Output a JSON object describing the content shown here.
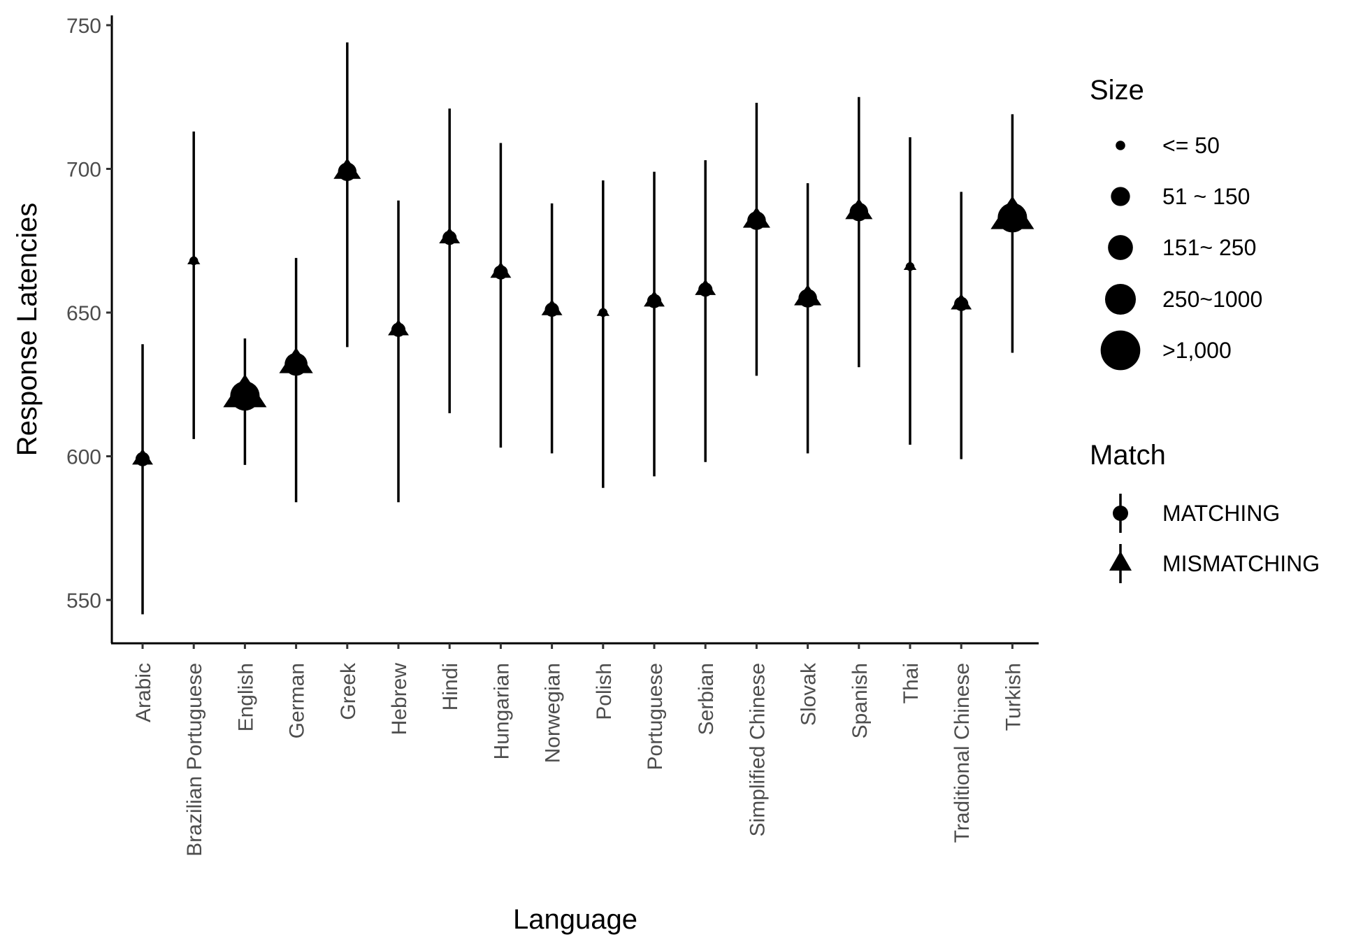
{
  "chart_data": {
    "type": "scatter",
    "xlabel": "Language",
    "ylabel": "Response Latencies",
    "ylim": [
      535,
      755
    ],
    "yticks": [
      "550",
      "600",
      "650",
      "700",
      "750"
    ],
    "grid": false,
    "categories": [
      "Arabic",
      "Brazilian Portuguese",
      "English",
      "German",
      "Greek",
      "Hebrew",
      "Hindi",
      "Hungarian",
      "Norwegian",
      "Polish",
      "Portuguese",
      "Serbian",
      "Simplified Chinese",
      "Slovak",
      "Spanish",
      "Thai",
      "Traditional Chinese",
      "Turkish"
    ],
    "series": [
      {
        "name": "MISMATCHING",
        "shape": "triangle",
        "values": [
          599,
          668,
          621,
          632,
          699,
          644,
          676,
          664,
          651,
          650,
          654,
          658,
          682,
          655,
          685,
          666,
          653,
          683
        ],
        "lower": [
          545,
          606,
          597,
          584,
          638,
          584,
          615,
          603,
          601,
          589,
          593,
          598,
          628,
          601,
          631,
          604,
          599,
          636
        ],
        "upper": [
          639,
          713,
          641,
          669,
          744,
          689,
          721,
          709,
          688,
          696,
          699,
          703,
          723,
          695,
          725,
          711,
          692,
          719
        ],
        "size_class": [
          "51 ~ 150",
          "<= 50",
          ">1,000",
          "250~1000",
          "151~ 250",
          "51 ~ 150",
          "51 ~ 150",
          "51 ~ 150",
          "51 ~ 150",
          "<= 50",
          "51 ~ 150",
          "51 ~ 150",
          "151~ 250",
          "151~ 250",
          "151~ 250",
          "<= 50",
          "51 ~ 150",
          ">1,000"
        ]
      }
    ],
    "legend": {
      "placement": "right",
      "size": {
        "title": "Size",
        "items": [
          "<= 50",
          "51 ~ 150",
          "151~ 250",
          "250~1000",
          ">1,000"
        ]
      },
      "match": {
        "title": "Match",
        "items": [
          {
            "label": "MATCHING",
            "shape": "circle"
          },
          {
            "label": "MISMATCHING",
            "shape": "triangle"
          }
        ]
      }
    }
  }
}
